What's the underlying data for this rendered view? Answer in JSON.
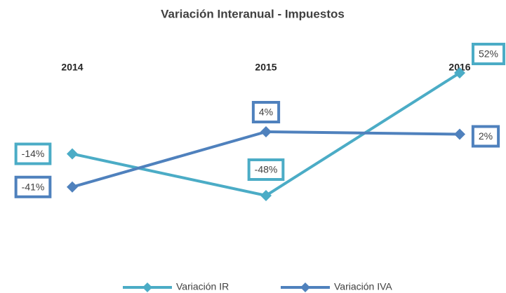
{
  "chart_data": {
    "type": "line",
    "title": "Variación Interanual - Impuestos",
    "categories": [
      "2014",
      "2015",
      "2016"
    ],
    "series": [
      {
        "name": "Variación IR",
        "color": "#4bacc6",
        "values": [
          -14,
          -48,
          52
        ],
        "value_labels": [
          "-14%",
          "-48%",
          "52%"
        ]
      },
      {
        "name": "Variación IVA",
        "color": "#4f81bd",
        "values": [
          -41,
          4,
          2
        ],
        "value_labels": [
          "-41%",
          "4%",
          "2%"
        ]
      }
    ],
    "ylim": [
      -80,
      60
    ],
    "legend": "bottom"
  }
}
